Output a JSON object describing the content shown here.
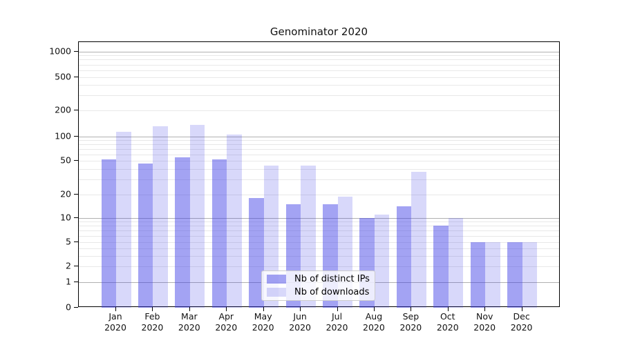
{
  "chart_data": {
    "type": "bar",
    "title": "Genominator 2020",
    "categories": [
      "Jan 2020",
      "Feb 2020",
      "Mar 2020",
      "Apr 2020",
      "May 2020",
      "Jun 2020",
      "Jul 2020",
      "Aug 2020",
      "Sep 2020",
      "Oct 2020",
      "Nov 2020",
      "Dec 2020"
    ],
    "series": [
      {
        "name": "Nb of distinct IPs",
        "values": [
          52,
          46,
          55,
          52,
          18,
          15,
          15,
          10,
          14,
          8,
          5,
          5
        ]
      },
      {
        "name": "Nb of downloads",
        "values": [
          113,
          130,
          136,
          105,
          44,
          44,
          19,
          11,
          37,
          10,
          5,
          5
        ]
      }
    ],
    "yscale": "symlog-like",
    "yticks": [
      0,
      1,
      2,
      5,
      10,
      20,
      50,
      100,
      200,
      500,
      1000
    ],
    "ylim": [
      0,
      1400
    ],
    "grid": "on",
    "legend_position": "lower center"
  },
  "colors": {
    "ip_bar": "rgba(60,60,230,0.47)",
    "dl_bar": "rgba(60,60,230,0.20)",
    "grid_major": "#b0b0b0",
    "grid_minor": "#e8e8e8",
    "spine": "#000000"
  },
  "minor_grid_values": [
    2,
    3,
    4,
    5,
    6,
    7,
    8,
    9,
    20,
    30,
    40,
    50,
    60,
    70,
    80,
    90,
    200,
    300,
    400,
    500,
    600,
    700,
    800,
    900
  ],
  "major_grid_values": [
    1,
    10,
    100,
    1000
  ]
}
